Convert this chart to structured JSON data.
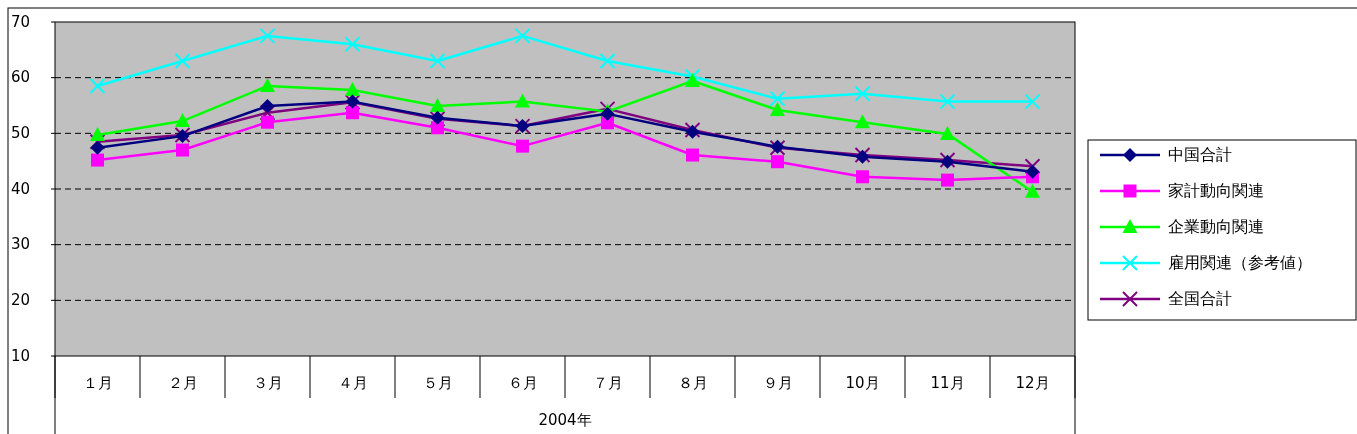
{
  "chart_data": {
    "type": "line",
    "xlabel": "2004年",
    "categories": [
      "１月",
      "２月",
      "３月",
      "４月",
      "５月",
      "６月",
      "７月",
      "８月",
      "９月",
      "10月",
      "11月",
      "12月"
    ],
    "ylim": [
      10,
      70
    ],
    "yticks": [
      10,
      20,
      30,
      40,
      50,
      60,
      70
    ],
    "grid": "y",
    "legend": "right",
    "series": [
      {
        "name": "中国合計",
        "color": "#000080",
        "marker": "diamond",
        "values": [
          47.4,
          49.5,
          54.9,
          55.7,
          52.8,
          51.3,
          53.5,
          50.3,
          47.6,
          45.8,
          44.9,
          43.1
        ]
      },
      {
        "name": "家計動向関連",
        "color": "#ff00ff",
        "marker": "square",
        "values": [
          45.2,
          47.0,
          52.0,
          53.7,
          51.0,
          47.7,
          51.9,
          46.1,
          44.9,
          42.2,
          41.6,
          42.2
        ]
      },
      {
        "name": "企業動向関連",
        "color": "#00ff00",
        "marker": "triangle",
        "values": [
          49.7,
          52.2,
          58.5,
          57.8,
          54.9,
          55.7,
          53.9,
          59.4,
          54.2,
          52.0,
          49.9,
          39.5
        ]
      },
      {
        "name": "雇用関連（参考値）",
        "color": "#00ffff",
        "marker": "cross",
        "values": [
          58.5,
          63.0,
          67.5,
          66.0,
          63.0,
          67.5,
          63.0,
          60.2,
          56.2,
          57.1,
          55.7,
          55.7
        ]
      },
      {
        "name": "全国合計",
        "color": "#800080",
        "marker": "cross",
        "values": [
          48.5,
          49.7,
          53.7,
          55.6,
          52.6,
          51.3,
          54.4,
          50.6,
          47.4,
          46.1,
          45.2,
          44.1
        ]
      }
    ]
  }
}
